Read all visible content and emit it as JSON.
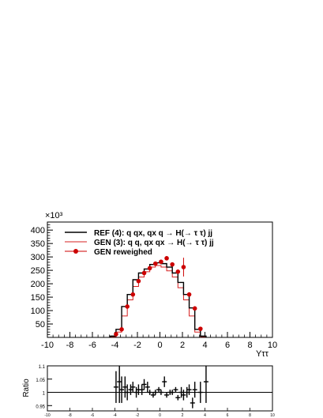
{
  "chart_data": [
    {
      "type": "line",
      "exponent_label": "×10³",
      "xlabel": "Yττ",
      "xlim": [
        -10,
        10
      ],
      "ylim": [
        0,
        430
      ],
      "x_ticks": [
        -10,
        -8,
        -6,
        -4,
        -2,
        0,
        2,
        4,
        6,
        8,
        10
      ],
      "y_ticks": [
        50,
        100,
        150,
        200,
        250,
        300,
        350,
        400
      ],
      "legend": {
        "position": "top-left",
        "entries": [
          {
            "label": "REF (4): q qx, qx q   → H(→ τ τ) jj",
            "color": "#000000",
            "style": "line"
          },
          {
            "label": "GEN (3): q q, qx qx → H(→ τ τ) jj",
            "color": "#d62020",
            "style": "line"
          },
          {
            "label": "GEN reweighed",
            "color": "#cc0000",
            "style": "marker"
          }
        ]
      },
      "bin_edges": [
        -4.4,
        -3.9,
        -3.4,
        -2.9,
        -2.4,
        -1.9,
        -1.4,
        -0.9,
        -0.4,
        0.1,
        0.6,
        1.1,
        1.6,
        2.1,
        2.6,
        3.1,
        3.6,
        4.1
      ],
      "series": [
        {
          "name": "REF (4): q qx, qx q   → H(→ τ τ) jj",
          "color": "#000000",
          "values": [
            5,
            30,
            115,
            160,
            215,
            240,
            255,
            272,
            278,
            275,
            262,
            240,
            205,
            160,
            110,
            30,
            5
          ]
        },
        {
          "name": "GEN (3): q q, qx qx → H(→ τ τ) jj",
          "color": "#d62020",
          "values": [
            3,
            20,
            80,
            140,
            190,
            225,
            245,
            262,
            268,
            262,
            248,
            225,
            185,
            140,
            80,
            20,
            3
          ]
        },
        {
          "name": "GEN reweighed",
          "color": "#cc0000",
          "x": [
            -3.9,
            -3.4,
            -2.9,
            -2.4,
            -1.9,
            -1.4,
            -0.9,
            -0.4,
            0.1,
            0.6,
            1.1,
            1.6,
            2.1,
            2.6,
            3.1,
            3.6
          ],
          "values": [
            12,
            30,
            115,
            160,
            210,
            240,
            258,
            275,
            282,
            295,
            272,
            245,
            262,
            160,
            108,
            32
          ],
          "errors": [
            6,
            6,
            8,
            8,
            8,
            8,
            8,
            8,
            8,
            8,
            8,
            8,
            35,
            8,
            8,
            6
          ]
        }
      ]
    },
    {
      "type": "scatter",
      "ylabel": "Ratio",
      "xlim": [
        -10,
        10
      ],
      "ylim": [
        0.93,
        1.1
      ],
      "y_ticks": [
        "0.95",
        "1",
        "1.05",
        "1.1"
      ],
      "x_ticks": [
        "-10",
        "-8",
        "-6",
        "-4",
        "-2",
        "0",
        "2",
        "4",
        "6",
        "8",
        "10"
      ],
      "reference_line": 1.0,
      "series": [
        {
          "name": "Ratio",
          "x": [
            -3.9,
            -3.6,
            -3.4,
            -3.1,
            -2.9,
            -2.6,
            -2.4,
            -2.1,
            -1.9,
            -1.6,
            -1.4,
            -1.1,
            -0.9,
            -0.6,
            -0.4,
            -0.1,
            0.1,
            0.4,
            0.6,
            0.9,
            1.1,
            1.4,
            1.6,
            1.9,
            2.1,
            2.4,
            2.6,
            2.9,
            3.1,
            3.6,
            4.1
          ],
          "values": [
            1.02,
            1.04,
            1.01,
            1.02,
            1.0,
            1.01,
            1.02,
            1.0,
            1.01,
            1.01,
            1.03,
            1.02,
            1.0,
            0.99,
            1.0,
            1.01,
            1.0,
            1.04,
            0.99,
            1.0,
            1.0,
            1.01,
            0.98,
            1.0,
            0.99,
            1.0,
            1.01,
            0.96,
            1.01,
            1.0,
            1.04
          ],
          "errors": [
            0.06,
            0.08,
            0.05,
            0.04,
            0.03,
            0.02,
            0.02,
            0.02,
            0.02,
            0.02,
            0.02,
            0.02,
            0.01,
            0.01,
            0.01,
            0.01,
            0.01,
            0.02,
            0.01,
            0.01,
            0.01,
            0.01,
            0.01,
            0.02,
            0.02,
            0.02,
            0.02,
            0.02,
            0.03,
            0.04,
            0.08
          ]
        }
      ]
    }
  ]
}
